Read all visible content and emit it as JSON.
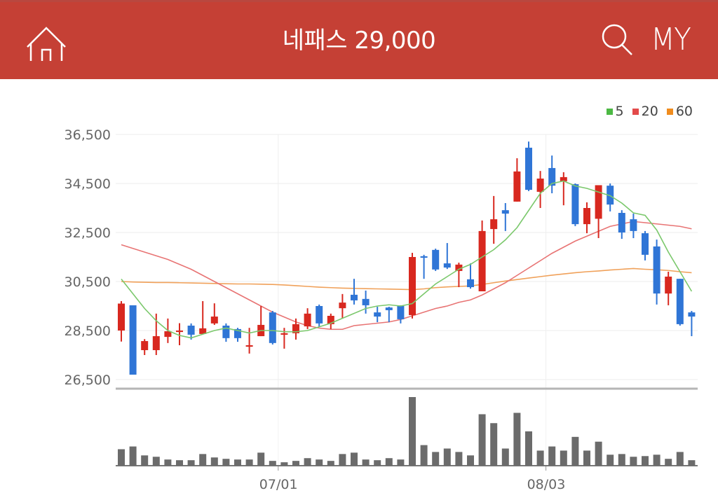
{
  "header": {
    "title": "네패스 29,000",
    "home_icon": "home-icon",
    "search_icon": "search-icon",
    "my_label": "MY",
    "background": "#c54035"
  },
  "legend": [
    {
      "label": "5",
      "color": "#4cb944"
    },
    {
      "label": "20",
      "color": "#e34a4a"
    },
    {
      "label": "60",
      "color": "#f08c1e"
    }
  ],
  "colors": {
    "up": "#d8281f",
    "down": "#2f75d6",
    "volume": "#6b6b6b",
    "grid": "#eeeeee",
    "ma5": "#7bc86c",
    "ma20": "#e87474",
    "ma60": "#f0a15a"
  },
  "chart_data": {
    "type": "candlestick",
    "title": "네패스 29,000",
    "ylabel": "",
    "xlabel": "",
    "ylim": [
      26500,
      36500
    ],
    "yticks": [
      "36,500",
      "34,500",
      "32,500",
      "30,500",
      "28,500",
      "26,500"
    ],
    "xticks": [
      {
        "label": "07/01",
        "index": 13
      },
      {
        "label": "08/03",
        "index": 36
      }
    ],
    "grid": true,
    "legend_position": "top-right",
    "legend": [
      "5",
      "20",
      "60"
    ],
    "ohlc": [
      [
        28500,
        29700,
        28050,
        29600
      ],
      [
        29530,
        29530,
        26700,
        26700
      ],
      [
        27700,
        28150,
        27500,
        28070
      ],
      [
        27700,
        29190,
        27500,
        28270
      ],
      [
        28240,
        28990,
        27990,
        28470
      ],
      [
        28440,
        28800,
        27900,
        28500
      ],
      [
        28700,
        28790,
        28130,
        28330
      ],
      [
        28360,
        29700,
        28360,
        28590
      ],
      [
        28790,
        29610,
        28730,
        29070
      ],
      [
        28700,
        28790,
        28040,
        28190
      ],
      [
        28560,
        28610,
        28040,
        28190
      ],
      [
        27840,
        28610,
        27560,
        27900
      ],
      [
        28270,
        29500,
        28270,
        28730
      ],
      [
        29240,
        29300,
        27930,
        27990
      ],
      [
        28330,
        28610,
        27760,
        28390
      ],
      [
        28390,
        28990,
        28130,
        28760
      ],
      [
        28670,
        29410,
        28560,
        29190
      ],
      [
        29500,
        29560,
        28640,
        28790
      ],
      [
        28760,
        29190,
        28560,
        29100
      ],
      [
        29410,
        29990,
        28990,
        29640
      ],
      [
        29960,
        30610,
        29560,
        29730
      ],
      [
        29790,
        30130,
        29190,
        29530
      ],
      [
        29240,
        29470,
        28840,
        29070
      ],
      [
        29440,
        29470,
        28840,
        29330
      ],
      [
        29500,
        29530,
        28790,
        28960
      ],
      [
        29130,
        31670,
        28990,
        31500
      ],
      [
        31530,
        31590,
        30610,
        31470
      ],
      [
        31790,
        31840,
        30930,
        30990
      ],
      [
        31240,
        32070,
        31010,
        31070
      ],
      [
        30930,
        31270,
        30270,
        31190
      ],
      [
        30590,
        31240,
        30210,
        30270
      ],
      [
        30100,
        32990,
        30100,
        32560
      ],
      [
        32640,
        33990,
        32040,
        33040
      ],
      [
        33410,
        33700,
        32560,
        33270
      ],
      [
        33760,
        35530,
        33760,
        34990
      ],
      [
        35960,
        36210,
        34190,
        34240
      ],
      [
        34160,
        35010,
        33500,
        34700
      ],
      [
        35130,
        35640,
        34100,
        34410
      ],
      [
        34590,
        34960,
        33610,
        34760
      ],
      [
        34470,
        34500,
        32760,
        32840
      ],
      [
        32840,
        33730,
        32470,
        33500
      ],
      [
        33060,
        34430,
        32270,
        34430
      ],
      [
        34410,
        34500,
        33360,
        33640
      ],
      [
        33300,
        33410,
        32240,
        32500
      ],
      [
        33040,
        33270,
        32270,
        32560
      ],
      [
        32470,
        32560,
        31360,
        31590
      ],
      [
        31930,
        32210,
        29560,
        30010
      ],
      [
        30010,
        30900,
        29530,
        30700
      ],
      [
        30610,
        30610,
        28700,
        28760
      ],
      [
        29240,
        29300,
        28270,
        29070
      ]
    ],
    "ma5": [
      30600,
      30000,
      29400,
      28900,
      28500,
      28300,
      28200,
      28350,
      28500,
      28600,
      28500,
      28400,
      28500,
      28500,
      28450,
      28450,
      28500,
      28650,
      28800,
      29000,
      29200,
      29400,
      29500,
      29550,
      29500,
      29600,
      30000,
      30400,
      30700,
      31000,
      31200,
      31500,
      31800,
      32200,
      32700,
      33400,
      34100,
      34500,
      34600,
      34400,
      34300,
      34150,
      34000,
      33700,
      33300,
      33200,
      32600,
      31700,
      30900,
      30100
    ],
    "ma20": [
      32000,
      31850,
      31700,
      31550,
      31400,
      31200,
      31000,
      30750,
      30500,
      30250,
      30000,
      29750,
      29500,
      29250,
      29050,
      28850,
      28700,
      28600,
      28550,
      28550,
      28700,
      28750,
      28800,
      28850,
      28950,
      29100,
      29250,
      29400,
      29500,
      29650,
      29750,
      29950,
      30200,
      30450,
      30750,
      31050,
      31350,
      31650,
      31900,
      32150,
      32350,
      32550,
      32750,
      32850,
      32950,
      32900,
      32850,
      32800,
      32750,
      32650
    ],
    "ma60": [
      30500,
      30480,
      30470,
      30460,
      30460,
      30450,
      30440,
      30430,
      30420,
      30410,
      30400,
      30400,
      30390,
      30380,
      30360,
      30330,
      30300,
      30270,
      30250,
      30230,
      30220,
      30210,
      30200,
      30190,
      30180,
      30170,
      30200,
      30250,
      30280,
      30300,
      30320,
      30380,
      30450,
      30520,
      30580,
      30640,
      30700,
      30760,
      30810,
      30860,
      30900,
      30930,
      30970,
      31000,
      31030,
      31000,
      30980,
      30950,
      30900,
      30860
    ],
    "volume": [
      24,
      28,
      15,
      13,
      9,
      8,
      8,
      17,
      12,
      10,
      9,
      9,
      19,
      7,
      5,
      7,
      11,
      9,
      7,
      17,
      19,
      9,
      8,
      11,
      9,
      100,
      30,
      20,
      25,
      20,
      15,
      75,
      62,
      25,
      77,
      50,
      22,
      28,
      22,
      42,
      22,
      35,
      16,
      17,
      13,
      14,
      16,
      10,
      20,
      8
    ]
  }
}
